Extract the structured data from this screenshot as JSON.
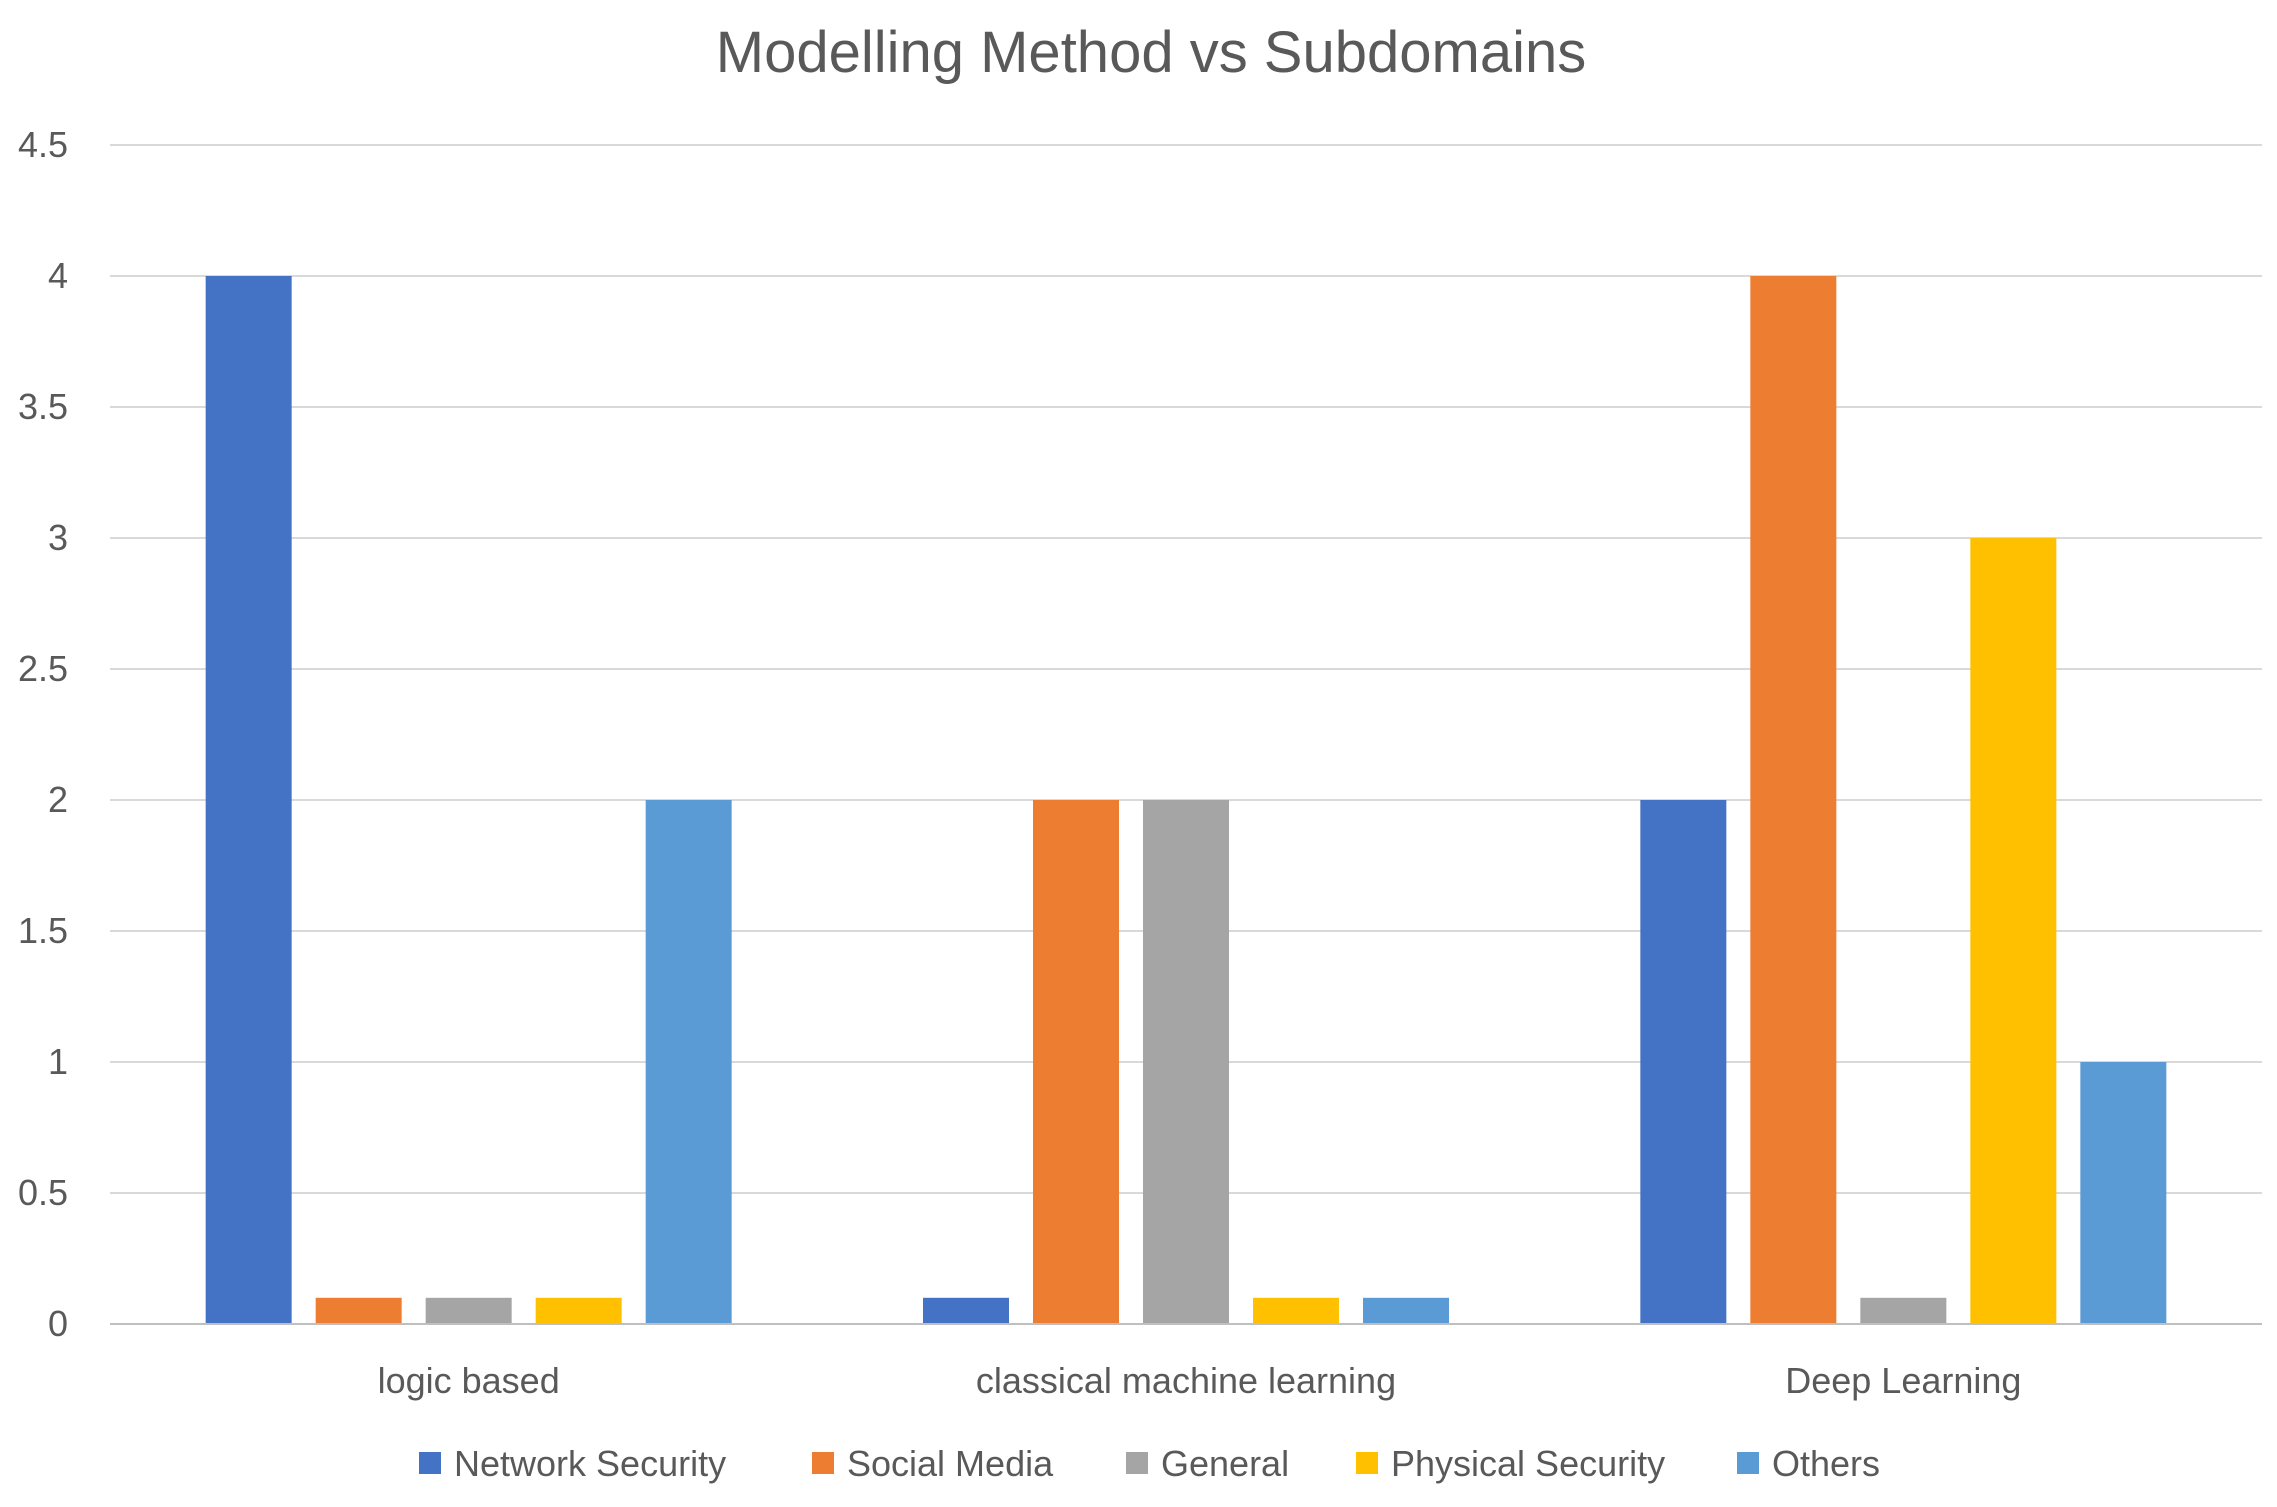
{
  "chart_data": {
    "type": "bar",
    "title": "Modelling Method vs Subdomains",
    "xlabel": "",
    "ylabel": "",
    "ylim": [
      0,
      4.5
    ],
    "y_ticks": [
      "0",
      "0.5",
      "1",
      "1.5",
      "2",
      "2.5",
      "3",
      "3.5",
      "4",
      "4.5"
    ],
    "y_tick_values": [
      0,
      0.5,
      1,
      1.5,
      2,
      2.5,
      3,
      3.5,
      4,
      4.5
    ],
    "grid": true,
    "legend_position": "bottom",
    "categories": [
      "logic based",
      "classical machine learning",
      "Deep Learning"
    ],
    "series": [
      {
        "name": "Network Security",
        "color": "#4472C4",
        "values": [
          4,
          0.1,
          2
        ]
      },
      {
        "name": "Social Media",
        "color": "#ED7D31",
        "values": [
          0.1,
          2,
          4
        ]
      },
      {
        "name": "General",
        "color": "#A5A5A5",
        "values": [
          0.1,
          2,
          0.1
        ]
      },
      {
        "name": "Physical Security",
        "color": "#FFC000",
        "values": [
          0.1,
          0.1,
          3
        ]
      },
      {
        "name": "Others",
        "color": "#5B9BD5",
        "values": [
          2,
          0.1,
          1
        ]
      }
    ]
  }
}
